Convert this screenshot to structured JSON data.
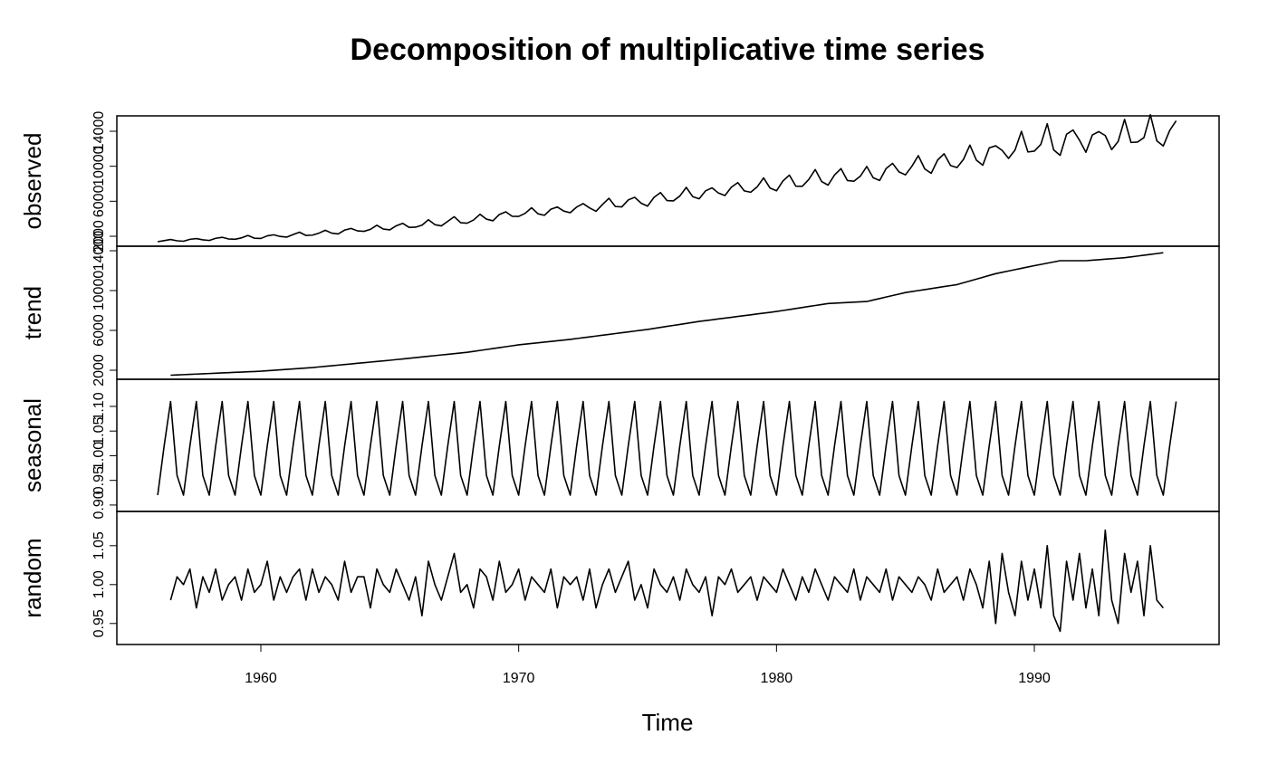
{
  "chart_data": {
    "type": "line",
    "title": "Decomposition of multiplicative time series",
    "x_label": "Time",
    "color": "#000000",
    "xlim": [
      1954.415,
      1997.165
    ],
    "xticks": [
      1960,
      1970,
      1980,
      1990
    ],
    "x": [
      1956,
      1956.25,
      1956.5,
      1956.75,
      1957,
      1957.25,
      1957.5,
      1957.75,
      1958,
      1958.25,
      1958.5,
      1958.75,
      1959,
      1959.25,
      1959.5,
      1959.75,
      1960,
      1960.25,
      1960.5,
      1960.75,
      1961,
      1961.25,
      1961.5,
      1961.75,
      1962,
      1962.25,
      1962.5,
      1962.75,
      1963,
      1963.25,
      1963.5,
      1963.75,
      1964,
      1964.25,
      1964.5,
      1964.75,
      1965,
      1965.25,
      1965.5,
      1965.75,
      1966,
      1966.25,
      1966.5,
      1966.75,
      1967,
      1967.25,
      1967.5,
      1967.75,
      1968,
      1968.25,
      1968.5,
      1968.75,
      1969,
      1969.25,
      1969.5,
      1969.75,
      1970,
      1970.25,
      1970.5,
      1970.75,
      1971,
      1971.25,
      1971.5,
      1971.75,
      1972,
      1972.25,
      1972.5,
      1972.75,
      1973,
      1973.25,
      1973.5,
      1973.75,
      1974,
      1974.25,
      1974.5,
      1974.75,
      1975,
      1975.25,
      1975.5,
      1975.75,
      1976,
      1976.25,
      1976.5,
      1976.75,
      1977,
      1977.25,
      1977.5,
      1977.75,
      1978,
      1978.25,
      1978.5,
      1978.75,
      1979,
      1979.25,
      1979.5,
      1979.75,
      1980,
      1980.25,
      1980.5,
      1980.75,
      1981,
      1981.25,
      1981.5,
      1981.75,
      1982,
      1982.25,
      1982.5,
      1982.75,
      1983,
      1983.25,
      1983.5,
      1983.75,
      1984,
      1984.25,
      1984.5,
      1984.75,
      1985,
      1985.25,
      1985.5,
      1985.75,
      1986,
      1986.25,
      1986.5,
      1986.75,
      1987,
      1987.25,
      1987.5,
      1987.75,
      1988,
      1988.25,
      1988.5,
      1988.75,
      1989,
      1989.25,
      1989.5,
      1989.75,
      1990,
      1990.25,
      1990.5,
      1990.75,
      1991,
      1991.25,
      1991.5,
      1991.75,
      1992,
      1992.25,
      1992.5,
      1992.75,
      1993,
      1993.25,
      1993.5,
      1993.75,
      1994,
      1994.25,
      1994.5,
      1994.75,
      1995,
      1995.25,
      1995.5
    ],
    "panels": [
      {
        "y_label": "observed",
        "ylim": [
          862,
          15758
        ],
        "yticks": [
          2000,
          6000,
          10000,
          14000
        ],
        "values": [
          1380,
          1500,
          1632,
          1483,
          1432,
          1650,
          1738,
          1593,
          1522,
          1769,
          1881,
          1687,
          1660,
          1813,
          2087,
          1778,
          1748,
          2044,
          2167,
          1977,
          1899,
          2195,
          2466,
          2092,
          2130,
          2354,
          2682,
          2355,
          2266,
          2704,
          2896,
          2614,
          2562,
          2788,
          3258,
          2821,
          2732,
          3191,
          3478,
          3011,
          3036,
          3264,
          3887,
          3328,
          3185,
          3709,
          4233,
          3548,
          3496,
          3853,
          4515,
          3957,
          3764,
          4485,
          4794,
          4278,
          4270,
          4617,
          5256,
          4566,
          4395,
          5092,
          5344,
          4878,
          4692,
          5339,
          5729,
          5239,
          4848,
          5627,
          6340,
          5401,
          5359,
          6146,
          6454,
          5776,
          5444,
          6450,
          6993,
          6083,
          6040,
          6597,
          7586,
          6528,
          6284,
          7194,
          7531,
          6933,
          6654,
          7613,
          8132,
          7184,
          7031,
          7647,
          8670,
          7504,
          7195,
          8323,
          8991,
          7715,
          7712,
          8482,
          9624,
          8256,
          7844,
          8997,
          9731,
          8364,
          8289,
          8864,
          9978,
          8688,
          8379,
          9728,
          10334,
          9357,
          9016,
          9997,
          11211,
          9696,
          9196,
          10716,
          11429,
          10080,
          9849,
          10779,
          12417,
          10704,
          10114,
          12100,
          12338,
          11814,
          10900,
          11848,
          13986,
          11635,
          11730,
          12491,
          14860,
          11865,
          11242,
          13658,
          14141,
          12979,
          11601,
          13577,
          13959,
          13508,
          11901,
          12839,
          15354,
          12719,
          12761,
          13268,
          15889,
          12905,
          12315,
          14100,
          15200
        ]
      },
      {
        "y_label": "trend",
        "ylim": [
          1091,
          14455
        ],
        "yticks": [
          2000,
          6000,
          10000,
          14000
        ],
        "values": [
          null,
          null,
          1500,
          1529,
          1557,
          1586,
          1614,
          1643,
          1671,
          1700,
          1729,
          1757,
          1786,
          1814,
          1843,
          1871,
          1900,
          1946,
          1992,
          2039,
          2085,
          2131,
          2178,
          2224,
          2270,
          2331,
          2392,
          2453,
          2513,
          2574,
          2635,
          2696,
          2757,
          2818,
          2878,
          2939,
          3000,
          3067,
          3133,
          3200,
          3267,
          3333,
          3400,
          3467,
          3533,
          3600,
          3667,
          3733,
          3800,
          3894,
          3988,
          4081,
          4175,
          4269,
          4363,
          4456,
          4550,
          4619,
          4688,
          4756,
          4825,
          4894,
          4963,
          5031,
          5100,
          5183,
          5267,
          5350,
          5433,
          5517,
          5600,
          5683,
          5767,
          5850,
          5933,
          6017,
          6100,
          6200,
          6300,
          6400,
          6500,
          6600,
          6700,
          6800,
          6900,
          6983,
          7067,
          7150,
          7233,
          7317,
          7400,
          7483,
          7567,
          7650,
          7733,
          7817,
          7900,
          8000,
          8100,
          8200,
          8300,
          8400,
          8500,
          8600,
          8700,
          8733,
          8767,
          8800,
          8833,
          8867,
          8900,
          9050,
          9200,
          9350,
          9500,
          9650,
          9800,
          9900,
          10000,
          10100,
          10200,
          10300,
          10400,
          10500,
          10600,
          10783,
          10967,
          11150,
          11333,
          11517,
          11700,
          11833,
          11967,
          12100,
          12233,
          12367,
          12500,
          12625,
          12750,
          12875,
          13000,
          13000,
          13000,
          13000,
          13000,
          13050,
          13100,
          13150,
          13200,
          13250,
          13300,
          13383,
          13467,
          13550,
          13633,
          13717,
          13800,
          null,
          null
        ]
      },
      {
        "y_label": "seasonal",
        "ylim": [
          0.887,
          1.155
        ],
        "yticks": [
          {
            "value": 0.9,
            "label": "0.90"
          },
          0.95,
          {
            "value": 1,
            "label": "1.00"
          },
          1.05,
          {
            "value": 1.1,
            "label": "1.10"
          }
        ],
        "values": [
          0.92,
          1.02,
          1.11,
          0.96,
          0.92,
          1.02,
          1.11,
          0.96,
          0.92,
          1.02,
          1.11,
          0.96,
          0.92,
          1.02,
          1.11,
          0.96,
          0.92,
          1.02,
          1.11,
          0.96,
          0.92,
          1.02,
          1.11,
          0.96,
          0.92,
          1.02,
          1.11,
          0.96,
          0.92,
          1.02,
          1.11,
          0.96,
          0.92,
          1.02,
          1.11,
          0.96,
          0.92,
          1.02,
          1.11,
          0.96,
          0.92,
          1.02,
          1.11,
          0.96,
          0.92,
          1.02,
          1.11,
          0.96,
          0.92,
          1.02,
          1.11,
          0.96,
          0.92,
          1.02,
          1.11,
          0.96,
          0.92,
          1.02,
          1.11,
          0.96,
          0.92,
          1.02,
          1.11,
          0.96,
          0.92,
          1.02,
          1.11,
          0.96,
          0.92,
          1.02,
          1.11,
          0.96,
          0.92,
          1.02,
          1.11,
          0.96,
          0.92,
          1.02,
          1.11,
          0.96,
          0.92,
          1.02,
          1.11,
          0.96,
          0.92,
          1.02,
          1.11,
          0.96,
          0.92,
          1.02,
          1.11,
          0.96,
          0.92,
          1.02,
          1.11,
          0.96,
          0.92,
          1.02,
          1.11,
          0.96,
          0.92,
          1.02,
          1.11,
          0.96,
          0.92,
          1.02,
          1.11,
          0.96,
          0.92,
          1.02,
          1.11,
          0.96,
          0.92,
          1.02,
          1.11,
          0.96,
          0.92,
          1.02,
          1.11,
          0.96,
          0.92,
          1.02,
          1.11,
          0.96,
          0.92,
          1.02,
          1.11,
          0.96,
          0.92,
          1.02,
          1.11,
          0.96,
          0.92,
          1.02,
          1.11,
          0.96,
          0.92,
          1.02,
          1.11,
          0.96,
          0.92,
          1.02,
          1.11,
          0.96,
          0.92,
          1.02,
          1.11,
          0.96,
          0.92,
          1.02,
          1.11,
          0.96,
          0.92,
          1.02,
          1.11,
          0.96,
          0.92,
          1.02,
          1.11
        ]
      },
      {
        "y_label": "random",
        "ylim": [
          0.923,
          1.094
        ],
        "yticks": [
          0.95,
          {
            "value": 1,
            "label": "1.00"
          },
          1.05
        ],
        "values": [
          null,
          null,
          0.98,
          1.01,
          1.0,
          1.02,
          0.97,
          1.01,
          0.99,
          1.02,
          0.98,
          1.0,
          1.01,
          0.98,
          1.02,
          0.99,
          1.0,
          1.03,
          0.98,
          1.01,
          0.99,
          1.01,
          1.02,
          0.98,
          1.02,
          0.99,
          1.01,
          1.0,
          0.98,
          1.03,
          0.99,
          1.01,
          1.01,
          0.97,
          1.02,
          1.0,
          0.99,
          1.02,
          1.0,
          0.98,
          1.01,
          0.96,
          1.03,
          1.0,
          0.98,
          1.01,
          1.04,
          0.99,
          1.0,
          0.97,
          1.02,
          1.01,
          0.98,
          1.03,
          0.99,
          1.0,
          1.02,
          0.98,
          1.01,
          1.0,
          0.99,
          1.02,
          0.97,
          1.01,
          1.0,
          1.01,
          0.98,
          1.02,
          0.97,
          1.0,
          1.02,
          0.99,
          1.01,
          1.03,
          0.98,
          1.0,
          0.97,
          1.02,
          1.0,
          0.99,
          1.01,
          0.98,
          1.02,
          1.0,
          0.99,
          1.01,
          0.96,
          1.01,
          1.0,
          1.02,
          0.99,
          1.0,
          1.01,
          0.98,
          1.01,
          1.0,
          0.99,
          1.02,
          1.0,
          0.98,
          1.01,
          0.99,
          1.02,
          1.0,
          0.98,
          1.01,
          1.0,
          0.99,
          1.02,
          0.98,
          1.01,
          1.0,
          0.99,
          1.02,
          0.98,
          1.01,
          1.0,
          0.99,
          1.01,
          1.0,
          0.98,
          1.02,
          0.99,
          1.0,
          1.01,
          0.98,
          1.02,
          1.0,
          0.97,
          1.03,
          0.95,
          1.04,
          0.99,
          0.96,
          1.03,
          0.98,
          1.02,
          0.97,
          1.05,
          0.96,
          0.94,
          1.03,
          0.98,
          1.04,
          0.97,
          1.02,
          0.96,
          1.07,
          0.98,
          0.95,
          1.04,
          0.99,
          1.03,
          0.96,
          1.05,
          0.98,
          0.97,
          null,
          null
        ]
      }
    ]
  }
}
